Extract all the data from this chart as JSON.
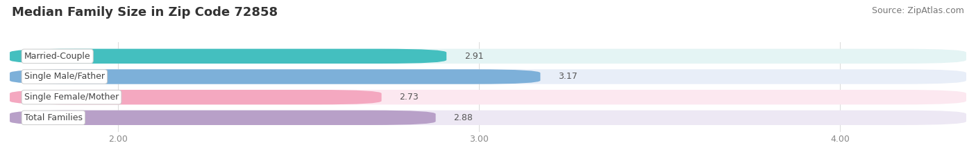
{
  "title": "Median Family Size in Zip Code 72858",
  "source": "Source: ZipAtlas.com",
  "categories": [
    "Married-Couple",
    "Single Male/Father",
    "Single Female/Mother",
    "Total Families"
  ],
  "values": [
    2.91,
    3.17,
    2.73,
    2.88
  ],
  "bar_colors": [
    "#44bfbf",
    "#7db0d9",
    "#f4a8c0",
    "#b8a0c8"
  ],
  "bar_bg_colors": [
    "#e4f4f4",
    "#e8eef8",
    "#fce8f0",
    "#ede8f4"
  ],
  "xmin": 0.0,
  "xlim_left": 1.7,
  "xlim_right": 4.35,
  "xticks": [
    2.0,
    3.0,
    4.0
  ],
  "xtick_labels": [
    "2.00",
    "3.00",
    "4.00"
  ],
  "title_fontsize": 13,
  "source_fontsize": 9,
  "label_fontsize": 9,
  "value_fontsize": 9,
  "tick_fontsize": 9,
  "bar_height": 0.72,
  "bar_gap": 0.28,
  "background_color": "#ffffff",
  "grid_color": "#dddddd",
  "label_text_color": "#444444",
  "value_text_color": "#555555",
  "title_color": "#333333",
  "source_color": "#777777"
}
